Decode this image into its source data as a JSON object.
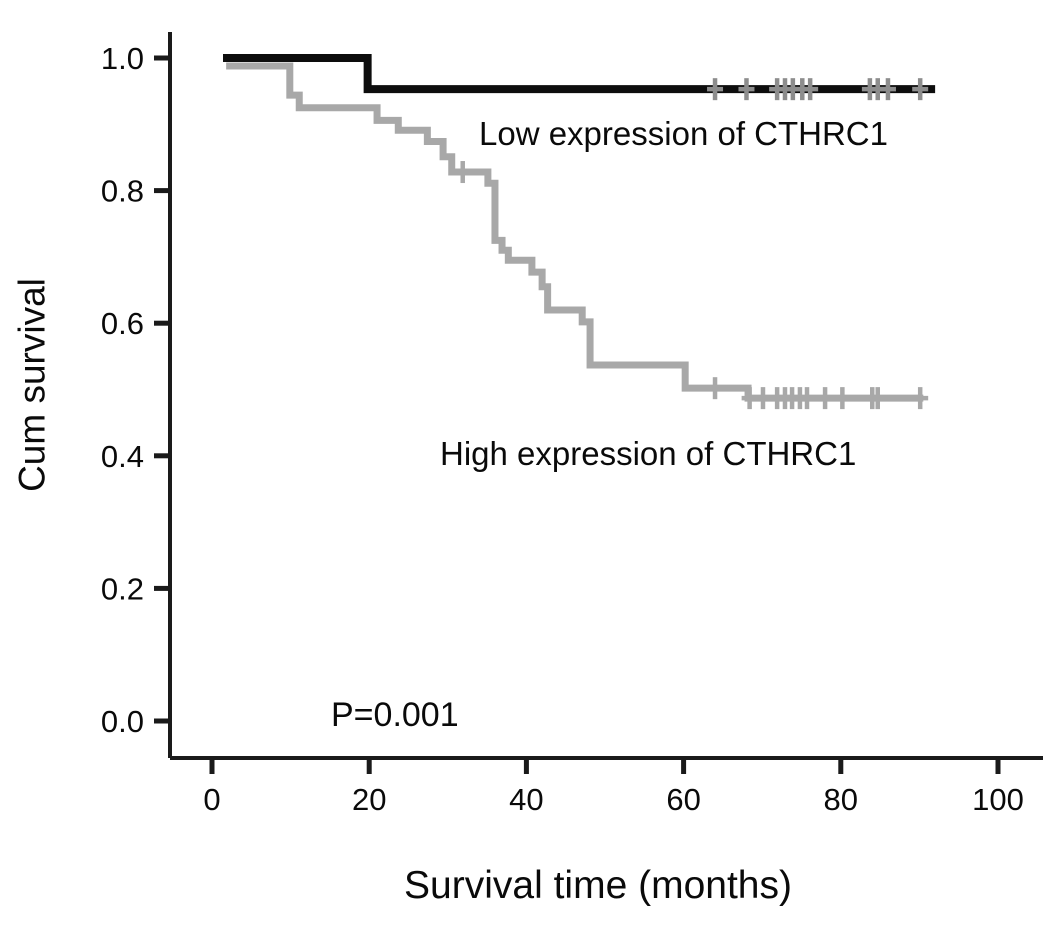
{
  "chart_data": {
    "type": "line",
    "subtype": "kaplan-meier-step",
    "title": "",
    "xlabel": "Survival time (months)",
    "ylabel": "Cum survival",
    "p_value": "P=0.001",
    "xlim": [
      0,
      105
    ],
    "ylim": [
      0,
      1.05
    ],
    "grid": false,
    "legend_position": "inline-annotations",
    "x_ticks": [
      {
        "v": 0,
        "label": "0"
      },
      {
        "v": 20,
        "label": "20"
      },
      {
        "v": 40,
        "label": "40"
      },
      {
        "v": 60,
        "label": "60"
      },
      {
        "v": 80,
        "label": "80"
      },
      {
        "v": 100,
        "label": "100"
      }
    ],
    "y_ticks": [
      {
        "v": 0.0,
        "label": "0.0"
      },
      {
        "v": 0.2,
        "label": "0.2"
      },
      {
        "v": 0.4,
        "label": "0.4"
      },
      {
        "v": 0.6,
        "label": "0.6"
      },
      {
        "v": 0.8,
        "label": "0.8"
      },
      {
        "v": 1.0,
        "label": "1.0"
      }
    ],
    "series": [
      {
        "id": "low",
        "name": "Low expression of CTHRC1",
        "color": "#0d0d0d",
        "censor_color": "#8d8d8d",
        "line_width": 8,
        "points": [
          [
            1.4,
            1.0
          ],
          [
            19.8,
            0.953
          ]
        ],
        "end_month": 92,
        "censors": [
          [
            64,
            0.953
          ],
          [
            68,
            0.953
          ],
          [
            71.9,
            0.953
          ],
          [
            72.9,
            0.953
          ],
          [
            73.9,
            0.953
          ],
          [
            75.1,
            0.953
          ],
          [
            76.1,
            0.953
          ],
          [
            83.7,
            0.953
          ],
          [
            84.7,
            0.953
          ],
          [
            86,
            0.953
          ],
          [
            90.1,
            0.953
          ]
        ]
      },
      {
        "id": "high",
        "name": "High expression of CTHRC1",
        "color": "#a8a8a8",
        "censor_color": "#a8a8a8",
        "line_width": 7,
        "points": [
          [
            1.8,
            0.988
          ],
          [
            9.9,
            0.944
          ],
          [
            11.1,
            0.925
          ],
          [
            21.0,
            0.906
          ],
          [
            23.7,
            0.891
          ],
          [
            27.4,
            0.874
          ],
          [
            29.4,
            0.851
          ],
          [
            30.5,
            0.828
          ],
          [
            35.1,
            0.811
          ],
          [
            36.0,
            0.725
          ],
          [
            36.9,
            0.71
          ],
          [
            37.7,
            0.695
          ],
          [
            40.7,
            0.677
          ],
          [
            42.0,
            0.655
          ],
          [
            42.7,
            0.62
          ],
          [
            47.1,
            0.602
          ],
          [
            48.1,
            0.537
          ],
          [
            60.2,
            0.502
          ],
          [
            68.2,
            0.487
          ]
        ],
        "end_month": 90.5,
        "censors": [
          [
            31.9,
            0.828
          ],
          [
            64,
            0.502
          ],
          [
            68.4,
            0.487
          ],
          [
            70.1,
            0.487
          ],
          [
            71.9,
            0.487
          ],
          [
            72.9,
            0.487
          ],
          [
            73.8,
            0.487
          ],
          [
            74.8,
            0.487
          ],
          [
            75.7,
            0.487
          ],
          [
            78,
            0.487
          ],
          [
            80.2,
            0.487
          ],
          [
            84,
            0.487
          ],
          [
            84.7,
            0.487
          ],
          [
            90.1,
            0.487
          ]
        ]
      }
    ],
    "axis_color": "#1a1a1a",
    "tick_label_color": "#0a0a0a"
  }
}
